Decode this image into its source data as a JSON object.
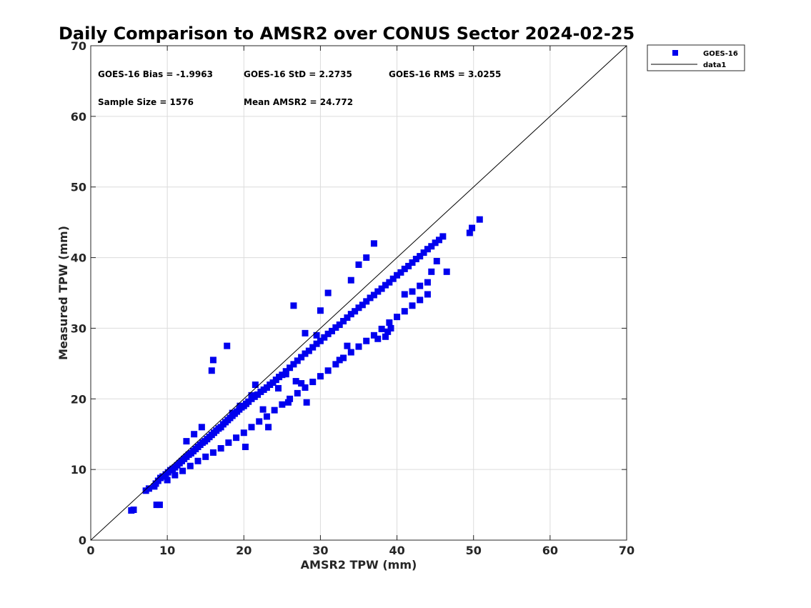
{
  "chart_data": {
    "type": "scatter",
    "title": "Daily Comparison to AMSR2 over CONUS Sector 2024-02-25",
    "xlabel": "AMSR2 TPW (mm)",
    "ylabel": "Measured TPW (mm)",
    "xlim": [
      0,
      70
    ],
    "ylim": [
      0,
      70
    ],
    "xticks": [
      "0",
      "10",
      "20",
      "30",
      "40",
      "50",
      "60",
      "70"
    ],
    "yticks": [
      "0",
      "10",
      "20",
      "30",
      "40",
      "50",
      "60",
      "70"
    ],
    "grid": true,
    "legend_position": "outside top-right",
    "legend": [
      "GOES-16",
      "data1"
    ],
    "annotations": {
      "bias": "GOES-16 Bias = -1.9963",
      "std": "GOES-16 StD = 2.2735",
      "rms": "GOES-16 RMS = 3.0255",
      "sample": "Sample Size = 1576",
      "mean": "Mean AMSR2 = 24.772"
    },
    "series": [
      {
        "name": "GOES-16",
        "color": "#0000ee",
        "marker": "square",
        "x": [
          5.3,
          5.6,
          7.2,
          7.6,
          8.3,
          8.5,
          8.8,
          9.1,
          9.4,
          9.8,
          10.1,
          10.4,
          10.7,
          11.0,
          11.3,
          11.6,
          11.9,
          12.2,
          12.5,
          12.8,
          13.1,
          13.4,
          13.7,
          14.0,
          14.3,
          14.6,
          14.9,
          15.2,
          15.5,
          15.8,
          16.1,
          16.4,
          16.7,
          17.0,
          17.3,
          17.6,
          17.9,
          18.2,
          18.5,
          18.8,
          19.1,
          19.4,
          19.7,
          20.0,
          20.3,
          20.6,
          21.0,
          21.4,
          21.8,
          22.2,
          22.6,
          23.0,
          23.4,
          23.8,
          24.2,
          24.6,
          25.0,
          25.5,
          26.0,
          26.5,
          27.0,
          27.5,
          28.0,
          28.5,
          29.0,
          29.5,
          30.0,
          30.5,
          31.0,
          31.5,
          32.0,
          32.5,
          33.0,
          33.5,
          34.0,
          34.5,
          35.0,
          35.5,
          36.0,
          36.5,
          37.0,
          37.5,
          38.0,
          38.5,
          39.0,
          39.5,
          40.0,
          40.5,
          41.0,
          41.5,
          42.0,
          42.5,
          43.0,
          43.5,
          44.0,
          44.5,
          45.0,
          45.5,
          46.0,
          49.5,
          49.8,
          50.8,
          10.0,
          11.0,
          12.0,
          13.0,
          14.0,
          15.0,
          16.0,
          17.0,
          18.0,
          19.0,
          20.0,
          21.0,
          22.0,
          23.0,
          24.0,
          25.0,
          26.0,
          27.0,
          28.0,
          29.0,
          30.0,
          31.0,
          32.0,
          33.0,
          34.0,
          35.0,
          36.0,
          37.0,
          38.0,
          39.0,
          40.0,
          41.0,
          42.0,
          43.0,
          44.0,
          8.6,
          9.0,
          15.8,
          16.0,
          17.8,
          20.2,
          21.5,
          22.5,
          23.2,
          25.8,
          26.5,
          27.5,
          28.0,
          29.5,
          30.0,
          31.0,
          34.0,
          35.0,
          36.0,
          37.0,
          37.5,
          38.5,
          41.0,
          42.0,
          43.0,
          44.0,
          44.5,
          45.2,
          46.5,
          12.5,
          13.5,
          14.5,
          18.5,
          19.5,
          21.0,
          24.5,
          25.5,
          26.8,
          28.2,
          32.5,
          33.5,
          38.8,
          39.2
        ],
        "y": [
          4.2,
          4.3,
          7.0,
          7.3,
          7.6,
          8.0,
          8.4,
          8.8,
          9.0,
          9.3,
          9.6,
          9.9,
          10.1,
          10.3,
          10.6,
          10.9,
          11.2,
          11.5,
          11.8,
          12.1,
          12.3,
          12.6,
          12.9,
          13.2,
          13.5,
          13.8,
          14.0,
          14.3,
          14.6,
          14.9,
          15.2,
          15.5,
          15.8,
          16.0,
          16.4,
          16.7,
          17.0,
          17.3,
          17.6,
          17.9,
          18.2,
          18.5,
          18.8,
          19.0,
          19.3,
          19.6,
          20.0,
          20.3,
          20.6,
          21.0,
          21.3,
          21.6,
          22.0,
          22.3,
          22.7,
          23.1,
          23.4,
          23.9,
          24.4,
          24.9,
          25.4,
          25.9,
          26.4,
          26.8,
          27.3,
          27.8,
          28.2,
          28.7,
          29.2,
          29.6,
          30.1,
          30.5,
          31.0,
          31.5,
          32.0,
          32.4,
          32.9,
          33.3,
          33.8,
          34.3,
          34.7,
          35.2,
          35.6,
          36.1,
          36.5,
          37.0,
          37.5,
          37.9,
          38.4,
          38.8,
          39.3,
          39.8,
          40.2,
          40.7,
          41.2,
          41.6,
          42.1,
          42.5,
          43.0,
          43.5,
          44.2,
          45.4,
          8.5,
          9.2,
          9.8,
          10.5,
          11.2,
          11.8,
          12.4,
          13.0,
          13.8,
          14.5,
          15.2,
          16.0,
          16.8,
          17.5,
          18.4,
          19.2,
          20.0,
          20.8,
          21.6,
          22.4,
          23.2,
          24.0,
          24.9,
          25.8,
          26.6,
          27.4,
          28.2,
          29.0,
          29.9,
          30.8,
          31.6,
          32.4,
          33.2,
          34.0,
          34.8,
          5.0,
          5.0,
          24.0,
          25.5,
          27.5,
          13.2,
          22.0,
          18.5,
          16.0,
          19.5,
          33.2,
          22.2,
          29.3,
          29.0,
          32.5,
          35.0,
          36.8,
          39.0,
          40.0,
          42.0,
          28.5,
          28.8,
          34.8,
          35.2,
          36.0,
          36.5,
          38.0,
          39.5,
          38.0,
          14.0,
          15.0,
          16.0,
          18.0,
          19.0,
          20.5,
          21.5,
          23.5,
          22.5,
          19.5,
          25.5,
          27.5,
          29.5,
          30.0
        ]
      },
      {
        "name": "data1",
        "color": "#000000",
        "type": "line",
        "x": [
          0,
          70
        ],
        "y": [
          0,
          70
        ]
      }
    ]
  }
}
